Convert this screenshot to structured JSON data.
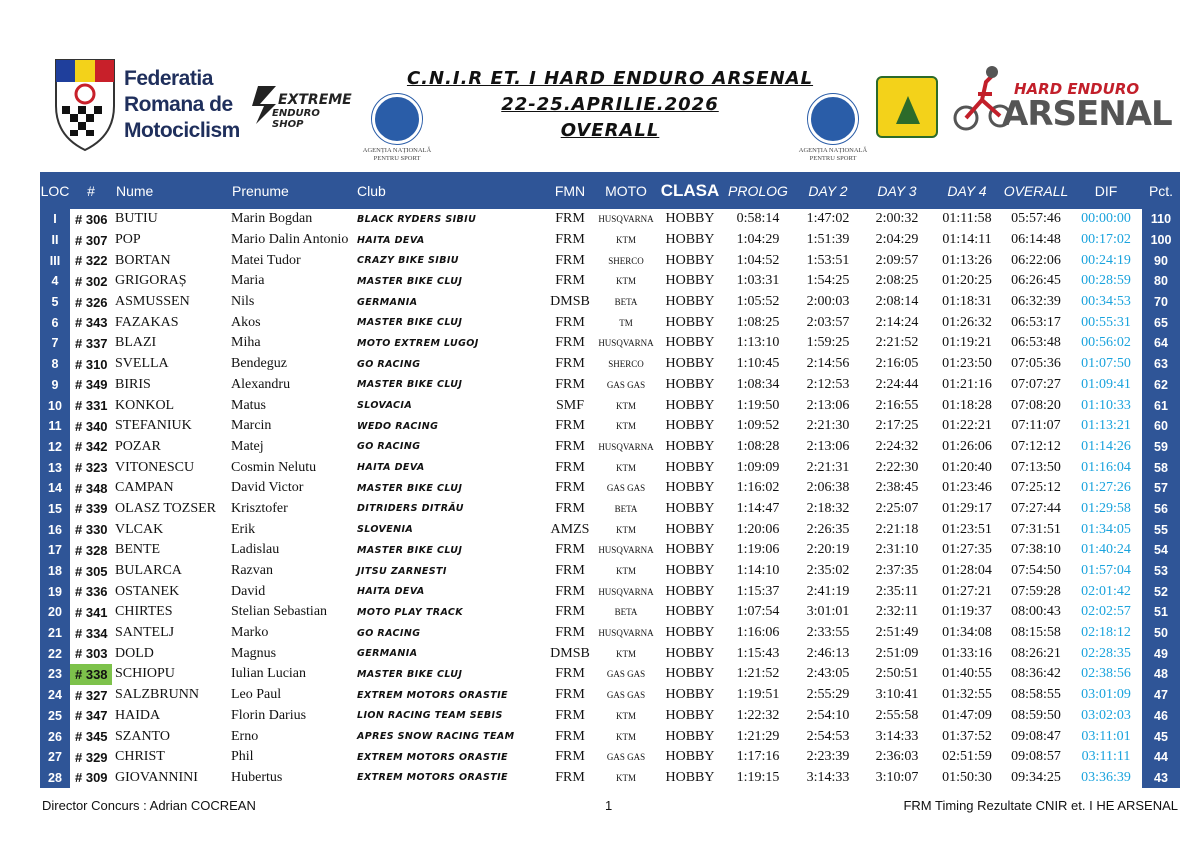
{
  "header": {
    "title_line1": "C.N.I.R ET. I HARD ENDURO ARSENAL",
    "title_line2": "22-25.APRILIE.2026",
    "title_line3": "OVERALL",
    "frm_logo": {
      "line1": "Federatia",
      "line2": "Romana de",
      "line3": "Motociclism",
      "badge": "FRM"
    },
    "sponsor_logo": {
      "line1": "EXTREME",
      "line2": "ENDURO SHOP"
    },
    "gov_logo": {
      "line1": "AGENȚIA NAȚIONALĂ",
      "line2": "PENTRU SPORT"
    },
    "arsenal_logo": {
      "line1": "HARD ENDURO",
      "line2": "ARSENAL"
    }
  },
  "columns": [
    "LOC",
    "#",
    "Nume",
    "Prenume",
    "Club",
    "FMN",
    "MOTO",
    "CLASA",
    "PROLOG",
    "DAY 2",
    "DAY 3",
    "DAY 4",
    "OVERALL",
    "DIF",
    "Pct."
  ],
  "colors": {
    "header_bg": "#2f5597",
    "dif_text": "#1aa3dd",
    "highlight": "#7dc24b"
  },
  "rows": [
    [
      "I",
      "# 306",
      "BUTIU",
      "Marin Bogdan",
      "BLACK RYDERS SIBIU",
      "FRM",
      "HUSQVARNA",
      "HOBBY",
      "0:58:14",
      "1:47:02",
      "2:00:32",
      "01:11:58",
      "05:57:46",
      "00:00:00",
      "110"
    ],
    [
      "II",
      "# 307",
      "POP",
      "Mario Dalin Antonio",
      "HAITA DEVA",
      "FRM",
      "KTM",
      "HOBBY",
      "1:04:29",
      "1:51:39",
      "2:04:29",
      "01:14:11",
      "06:14:48",
      "00:17:02",
      "100"
    ],
    [
      "III",
      "# 322",
      "BORTAN",
      "Matei Tudor",
      "CRAZY BIKE SIBIU",
      "FRM",
      "SHERCO",
      "HOBBY",
      "1:04:52",
      "1:53:51",
      "2:09:57",
      "01:13:26",
      "06:22:06",
      "00:24:19",
      "90"
    ],
    [
      "4",
      "# 302",
      "GRIGORAȘ",
      "Maria",
      "MASTER BIKE CLUJ",
      "FRM",
      "KTM",
      "HOBBY",
      "1:03:31",
      "1:54:25",
      "2:08:25",
      "01:20:25",
      "06:26:45",
      "00:28:59",
      "80"
    ],
    [
      "5",
      "# 326",
      "ASMUSSEN",
      "Nils",
      "GERMANIA",
      "DMSB",
      "BETA",
      "HOBBY",
      "1:05:52",
      "2:00:03",
      "2:08:14",
      "01:18:31",
      "06:32:39",
      "00:34:53",
      "70"
    ],
    [
      "6",
      "# 343",
      "FAZAKAS",
      "Akos",
      "MASTER BIKE CLUJ",
      "FRM",
      "TM",
      "HOBBY",
      "1:08:25",
      "2:03:57",
      "2:14:24",
      "01:26:32",
      "06:53:17",
      "00:55:31",
      "65"
    ],
    [
      "7",
      "# 337",
      "BLAZI",
      "Miha",
      "MOTO EXTREM LUGOJ",
      "FRM",
      "HUSQVARNA",
      "HOBBY",
      "1:13:10",
      "1:59:25",
      "2:21:52",
      "01:19:21",
      "06:53:48",
      "00:56:02",
      "64"
    ],
    [
      "8",
      "# 310",
      "SVELLA",
      "Bendeguz",
      "GO RACING",
      "FRM",
      "SHERCO",
      "HOBBY",
      "1:10:45",
      "2:14:56",
      "2:16:05",
      "01:23:50",
      "07:05:36",
      "01:07:50",
      "63"
    ],
    [
      "9",
      "# 349",
      "BIRIS",
      "Alexandru",
      "MASTER BIKE CLUJ",
      "FRM",
      "GAS GAS",
      "HOBBY",
      "1:08:34",
      "2:12:53",
      "2:24:44",
      "01:21:16",
      "07:07:27",
      "01:09:41",
      "62"
    ],
    [
      "10",
      "# 331",
      "KONKOL",
      "Matus",
      "SLOVACIA",
      "SMF",
      "KTM",
      "HOBBY",
      "1:19:50",
      "2:13:06",
      "2:16:55",
      "01:18:28",
      "07:08:20",
      "01:10:33",
      "61"
    ],
    [
      "11",
      "# 340",
      "STEFANIUK",
      "Marcin",
      "WEDO RACING",
      "FRM",
      "KTM",
      "HOBBY",
      "1:09:52",
      "2:21:30",
      "2:17:25",
      "01:22:21",
      "07:11:07",
      "01:13:21",
      "60"
    ],
    [
      "12",
      "# 342",
      "POZAR",
      "Matej",
      "GO RACING",
      "FRM",
      "HUSQVARNA",
      "HOBBY",
      "1:08:28",
      "2:13:06",
      "2:24:32",
      "01:26:06",
      "07:12:12",
      "01:14:26",
      "59"
    ],
    [
      "13",
      "# 323",
      "VITONESCU",
      "Cosmin Nelutu",
      "HAITA DEVA",
      "FRM",
      "KTM",
      "HOBBY",
      "1:09:09",
      "2:21:31",
      "2:22:30",
      "01:20:40",
      "07:13:50",
      "01:16:04",
      "58"
    ],
    [
      "14",
      "# 348",
      "CAMPAN",
      "David Victor",
      "MASTER BIKE CLUJ",
      "FRM",
      "GAS GAS",
      "HOBBY",
      "1:16:02",
      "2:06:38",
      "2:38:45",
      "01:23:46",
      "07:25:12",
      "01:27:26",
      "57"
    ],
    [
      "15",
      "# 339",
      "OLASZ TOZSER",
      "Krisztofer",
      "DITRIDERS DITRĂU",
      "FRM",
      "BETA",
      "HOBBY",
      "1:14:47",
      "2:18:32",
      "2:25:07",
      "01:29:17",
      "07:27:44",
      "01:29:58",
      "56"
    ],
    [
      "16",
      "# 330",
      "VLCAK",
      "Erik",
      "SLOVENIA",
      "AMZS",
      "KTM",
      "HOBBY",
      "1:20:06",
      "2:26:35",
      "2:21:18",
      "01:23:51",
      "07:31:51",
      "01:34:05",
      "55"
    ],
    [
      "17",
      "# 328",
      "BENTE",
      "Ladislau",
      "MASTER BIKE CLUJ",
      "FRM",
      "HUSQVARNA",
      "HOBBY",
      "1:19:06",
      "2:20:19",
      "2:31:10",
      "01:27:35",
      "07:38:10",
      "01:40:24",
      "54"
    ],
    [
      "18",
      "# 305",
      "BULARCA",
      "Razvan",
      "JITSU ZARNESTI",
      "FRM",
      "KTM",
      "HOBBY",
      "1:14:10",
      "2:35:02",
      "2:37:35",
      "01:28:04",
      "07:54:50",
      "01:57:04",
      "53"
    ],
    [
      "19",
      "# 336",
      "OSTANEK",
      "David",
      "HAITA DEVA",
      "FRM",
      "HUSQVARNA",
      "HOBBY",
      "1:15:37",
      "2:41:19",
      "2:35:11",
      "01:27:21",
      "07:59:28",
      "02:01:42",
      "52"
    ],
    [
      "20",
      "# 341",
      "CHIRTES",
      "Stelian Sebastian",
      "MOTO PLAY TRACK",
      "FRM",
      "BETA",
      "HOBBY",
      "1:07:54",
      "3:01:01",
      "2:32:11",
      "01:19:37",
      "08:00:43",
      "02:02:57",
      "51"
    ],
    [
      "21",
      "# 334",
      "SANTELJ",
      "Marko",
      "GO RACING",
      "FRM",
      "HUSQVARNA",
      "HOBBY",
      "1:16:06",
      "2:33:55",
      "2:51:49",
      "01:34:08",
      "08:15:58",
      "02:18:12",
      "50"
    ],
    [
      "22",
      "# 303",
      "DOLD",
      "Magnus",
      "GERMANIA",
      "DMSB",
      "KTM",
      "HOBBY",
      "1:15:43",
      "2:46:13",
      "2:51:09",
      "01:33:16",
      "08:26:21",
      "02:28:35",
      "49"
    ],
    [
      "23",
      "# 338",
      "SCHIOPU",
      "Iulian Lucian",
      "MASTER BIKE CLUJ",
      "FRM",
      "GAS GAS",
      "HOBBY",
      "1:21:52",
      "2:43:05",
      "2:50:51",
      "01:40:55",
      "08:36:42",
      "02:38:56",
      "48"
    ],
    [
      "24",
      "# 327",
      "SALZBRUNN",
      "Leo Paul",
      "EXTREM MOTORS ORASTIE",
      "FRM",
      "GAS GAS",
      "HOBBY",
      "1:19:51",
      "2:55:29",
      "3:10:41",
      "01:32:55",
      "08:58:55",
      "03:01:09",
      "47"
    ],
    [
      "25",
      "# 347",
      "HAIDA",
      "Florin Darius",
      "LION RACING TEAM SEBIS",
      "FRM",
      "KTM",
      "HOBBY",
      "1:22:32",
      "2:54:10",
      "2:55:58",
      "01:47:09",
      "08:59:50",
      "03:02:03",
      "46"
    ],
    [
      "26",
      "# 345",
      "SZANTO",
      "Erno",
      "APRES SNOW RACING TEAM",
      "FRM",
      "KTM",
      "HOBBY",
      "1:21:29",
      "2:54:53",
      "3:14:33",
      "01:37:52",
      "09:08:47",
      "03:11:01",
      "45"
    ],
    [
      "27",
      "# 329",
      "CHRIST",
      "Phil",
      "EXTREM MOTORS ORASTIE",
      "FRM",
      "GAS GAS",
      "HOBBY",
      "1:17:16",
      "2:23:39",
      "2:36:03",
      "02:51:59",
      "09:08:57",
      "03:11:11",
      "44"
    ],
    [
      "28",
      "# 309",
      "GIOVANNINI",
      "Hubertus",
      "EXTREM MOTORS ORASTIE",
      "FRM",
      "KTM",
      "HOBBY",
      "1:19:15",
      "3:14:33",
      "3:10:07",
      "01:50:30",
      "09:34:25",
      "03:36:39",
      "43"
    ]
  ],
  "highlighted_bib": "# 338",
  "footer": {
    "left": "Director Concurs : Adrian COCREAN",
    "page": "1",
    "right": "FRM Timing Rezultate CNIR et. I HE ARSENAL"
  }
}
